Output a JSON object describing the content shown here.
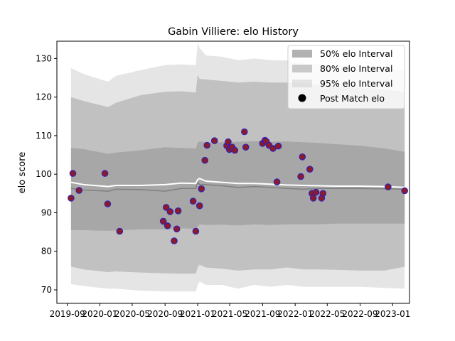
{
  "chart_data": {
    "type": "line",
    "title": "Gabin Villiere: elo History",
    "xlabel": "",
    "ylabel": "elo score",
    "xlim": [
      "2019-07-24",
      "2023-03-05"
    ],
    "ylim": [
      66.5,
      134.5
    ],
    "x_ticks": [
      "2019-09",
      "2020-01",
      "2020-05",
      "2020-09",
      "2021-01",
      "2021-05",
      "2021-09",
      "2022-01",
      "2022-05",
      "2022-09",
      "2023-01"
    ],
    "x_tick_dates": [
      "2019-09-01",
      "2020-01-01",
      "2020-05-01",
      "2020-09-01",
      "2021-01-01",
      "2021-05-01",
      "2021-09-01",
      "2022-01-01",
      "2022-05-01",
      "2022-09-01",
      "2023-01-01"
    ],
    "y_ticks": [
      70,
      80,
      90,
      100,
      110,
      120,
      130
    ],
    "grid": false,
    "legend": {
      "placement": "top-right",
      "entries": [
        "50% elo Interval",
        "80% elo Interval",
        "95% elo Interval",
        "Post Match elo"
      ]
    },
    "colors": {
      "band50": "#7f7f7f",
      "band80": "#a9a9a9",
      "band95": "#d3d3d3",
      "mean_line": "#ffffff",
      "median_line": "#808080",
      "point_fill": "#8b1a2b",
      "point_edge": "#2222cc"
    },
    "bands": {
      "x": [
        "2019-09-15",
        "2019-11-01",
        "2020-02-01",
        "2020-03-01",
        "2020-06-01",
        "2020-09-01",
        "2020-11-01",
        "2020-12-25",
        "2021-01-01",
        "2021-01-08",
        "2021-02-01",
        "2021-04-01",
        "2021-06-01",
        "2021-08-01",
        "2021-10-01",
        "2021-12-01",
        "2022-02-01",
        "2022-04-01",
        "2022-06-01",
        "2022-09-01",
        "2022-12-01",
        "2023-02-15"
      ],
      "p95_low": [
        71.5,
        71,
        70.3,
        70.3,
        69.8,
        69.6,
        69.6,
        69.6,
        71.2,
        72.2,
        71.3,
        71.3,
        70.3,
        71.3,
        70.8,
        71.3,
        70.8,
        70.8,
        70.8,
        70.8,
        70.5,
        70.3
      ],
      "p95_high": [
        127.5,
        126,
        124,
        125.5,
        127,
        128.3,
        128.5,
        128.3,
        134,
        132.8,
        130.8,
        130.5,
        129.6,
        130,
        129.6,
        129.5,
        128.8,
        128.5,
        128.2,
        128,
        127.5,
        127
      ],
      "p80_low": [
        76,
        75.3,
        74.6,
        74.8,
        74.5,
        74.3,
        74.2,
        74.2,
        75.8,
        76.5,
        75.8,
        75.5,
        75,
        75.3,
        75.3,
        75.8,
        75.3,
        75.3,
        75.2,
        75,
        75,
        76
      ],
      "p80_high": [
        120,
        119,
        117.4,
        118.5,
        120.5,
        121.4,
        121.5,
        121.2,
        125.8,
        124.7,
        124.6,
        124.2,
        123.8,
        124,
        123.8,
        123.8,
        123.7,
        123.2,
        122.8,
        122.5,
        122,
        121.4
      ],
      "p50_low": [
        85.5,
        85.5,
        85.3,
        85.4,
        85.7,
        85.7,
        86,
        85.8,
        86.4,
        87,
        86.8,
        86.9,
        86.7,
        87,
        86.8,
        87,
        87,
        87,
        87.2,
        87.2,
        87.2,
        87.2
      ],
      "p50_high": [
        106.8,
        106.5,
        105.3,
        105.6,
        106.2,
        107,
        106.8,
        106.7,
        108.2,
        108.5,
        108.3,
        108.3,
        108.4,
        108.6,
        108.4,
        108.5,
        108.3,
        108.1,
        107.8,
        107.4,
        106.7,
        105.8
      ],
      "median": [
        96.3,
        95.9,
        95.6,
        96.1,
        96,
        95.6,
        96.3,
        96.3,
        98,
        97.3,
        97.3,
        97,
        96.6,
        96.8,
        96.6,
        96.3,
        96.1,
        96.3,
        96.3,
        96.3,
        96.2,
        96.1
      ],
      "mean": [
        97.9,
        97.3,
        96.8,
        97.1,
        97.1,
        97.3,
        97.7,
        97.6,
        98.6,
        98.9,
        98.2,
        97.9,
        97.6,
        97.6,
        97.4,
        97.2,
        97.1,
        97,
        96.9,
        96.9,
        96.8,
        96.6
      ]
    },
    "points": {
      "x": [
        "2019-09-15",
        "2019-09-22",
        "2019-10-15",
        "2020-01-20",
        "2020-01-30",
        "2020-03-15",
        "2020-08-25",
        "2020-09-05",
        "2020-09-10",
        "2020-09-20",
        "2020-10-05",
        "2020-10-15",
        "2020-10-20",
        "2020-12-15",
        "2020-12-25",
        "2021-01-08",
        "2021-01-15",
        "2021-01-28",
        "2021-02-05",
        "2021-03-05",
        "2021-04-20",
        "2021-04-25",
        "2021-04-30",
        "2021-05-10",
        "2021-05-20",
        "2021-06-25",
        "2021-06-30",
        "2021-09-01",
        "2021-09-10",
        "2021-09-15",
        "2021-09-25",
        "2021-10-10",
        "2021-10-25",
        "2021-10-30",
        "2022-01-22",
        "2022-01-28",
        "2022-02-25",
        "2022-03-05",
        "2022-03-10",
        "2022-03-20",
        "2022-04-10",
        "2022-04-15",
        "2022-12-15",
        "2023-02-15"
      ],
      "y": [
        93.8,
        100.2,
        95.8,
        100.2,
        92.3,
        85.2,
        87.8,
        91.4,
        86.6,
        90.3,
        82.7,
        85.8,
        90.5,
        93,
        85.2,
        91.8,
        96.2,
        103.6,
        107.5,
        108.7,
        107.4,
        108.4,
        106.4,
        107,
        106.2,
        111,
        107,
        108,
        108.8,
        108.5,
        107.5,
        106.7,
        98,
        107.3,
        99.4,
        104.5,
        101.3,
        95,
        93.8,
        95.3,
        93.8,
        95,
        96.7,
        95.7
      ]
    }
  }
}
